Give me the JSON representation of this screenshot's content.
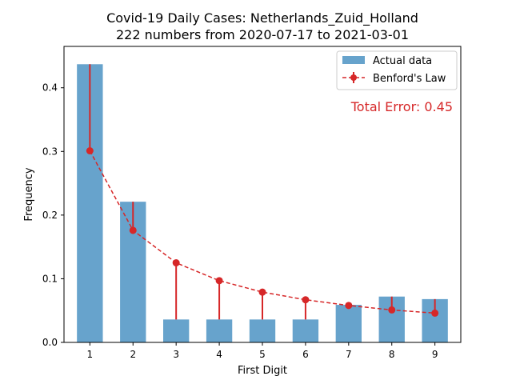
{
  "chart_data": {
    "type": "bar",
    "title": "Covid-19 Daily Cases: Netherlands_Zuid_Holland",
    "subtitle": "222 numbers from 2020-07-17 to 2021-03-01",
    "xlabel": "First Digit",
    "ylabel": "Frequency",
    "categories": [
      "1",
      "2",
      "3",
      "4",
      "5",
      "6",
      "7",
      "8",
      "9"
    ],
    "ylim": [
      0,
      0.465
    ],
    "yticks": [
      "0.0",
      "0.1",
      "0.2",
      "0.3",
      "0.4"
    ],
    "series": [
      {
        "name": "Actual data",
        "kind": "bar",
        "color": "#1f77b4",
        "values": [
          0.437,
          0.221,
          0.036,
          0.036,
          0.036,
          0.036,
          0.059,
          0.072,
          0.068
        ]
      },
      {
        "name": "Benford's Law",
        "kind": "line-with-errorbars",
        "color": "#d62728",
        "values": [
          0.301,
          0.176,
          0.125,
          0.097,
          0.079,
          0.067,
          0.058,
          0.051,
          0.046
        ]
      }
    ],
    "legend_position": "top-right",
    "annotation": "Total Error: 0.45",
    "annotation_color": "#d62728"
  }
}
